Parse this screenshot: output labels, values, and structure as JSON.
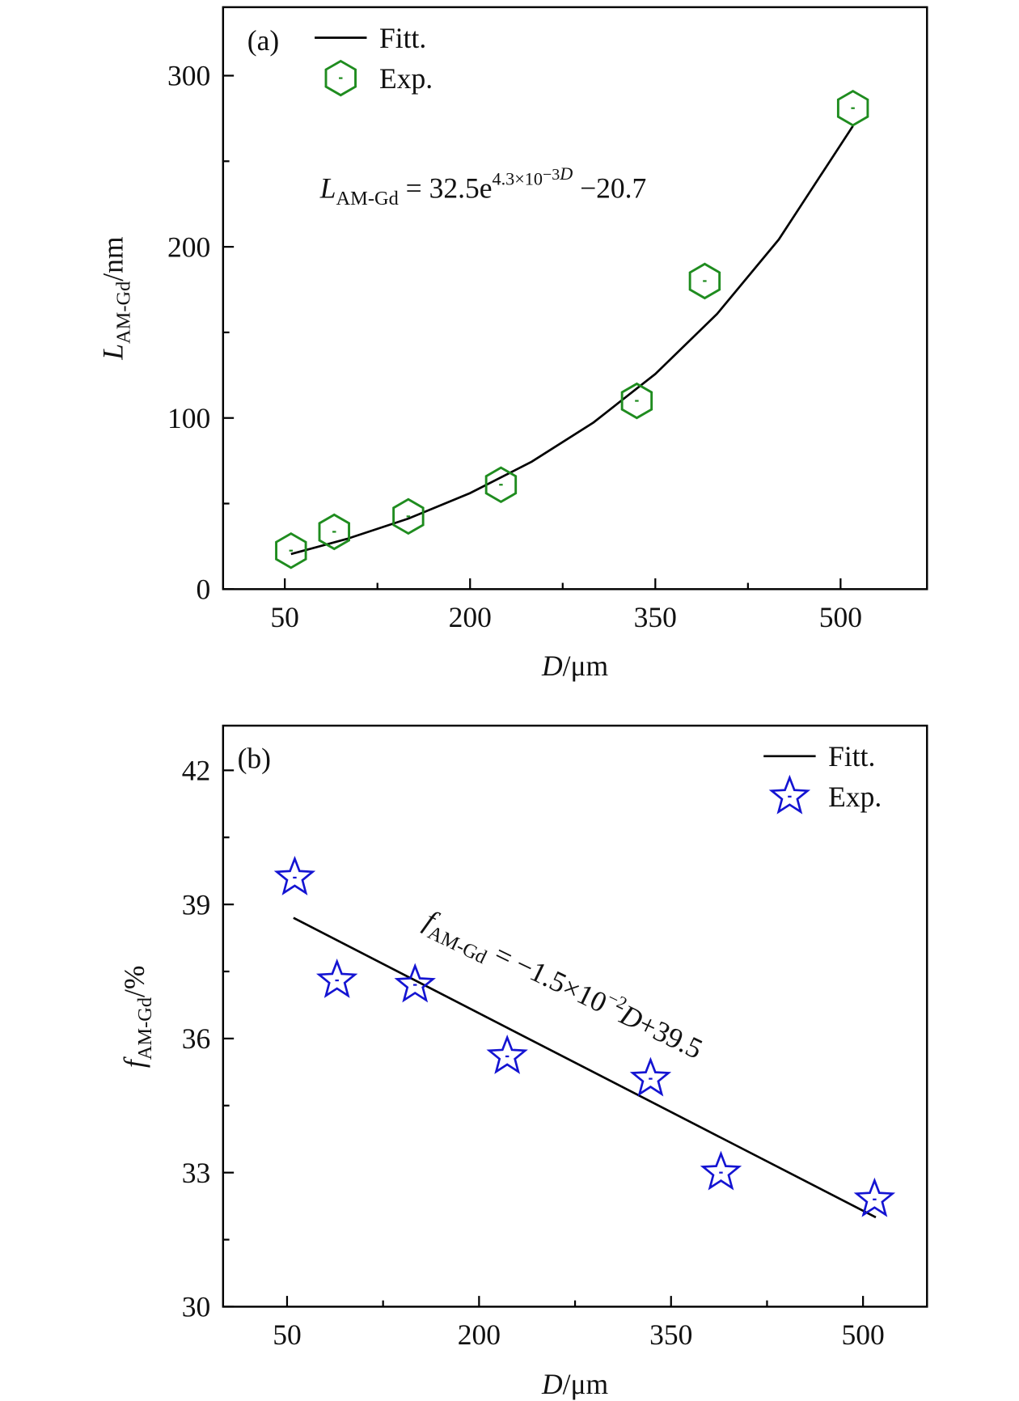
{
  "chart_data": [
    {
      "type": "scatter",
      "panel_label": "(a)",
      "x_label": [
        "D",
        "/μm"
      ],
      "y_label": [
        "L",
        "AM-Gd",
        "/nm"
      ],
      "annotation": [
        "L",
        "AM-Gd",
        " = 32.5e",
        "4.3×10",
        "−3",
        "D",
        " −20.7"
      ],
      "xlim": [
        0,
        570
      ],
      "xticks": [
        50,
        200,
        350,
        500
      ],
      "xminor": [
        125,
        275,
        425
      ],
      "ylim": [
        0,
        340
      ],
      "yticks": [
        0,
        100,
        200,
        300
      ],
      "yminor": [
        50,
        150,
        250
      ],
      "legend": "upper left",
      "series": [
        {
          "name": "Fitt.",
          "color": "#000000",
          "marker": "line",
          "x": [
            55,
            100,
            150,
            200,
            250,
            300,
            350,
            400,
            450,
            510
          ],
          "values": [
            20.5,
            29.3,
            41.2,
            56.1,
            74.5,
            97.4,
            125.7,
            160.8,
            204.3,
            270.6
          ]
        },
        {
          "name": "Exp.",
          "color": "#1f8c1f",
          "marker": "hexagon",
          "x": [
            55,
            90,
            150,
            225,
            335,
            390,
            510
          ],
          "values": [
            22.5,
            33.5,
            42.5,
            61,
            110,
            180,
            281
          ]
        }
      ]
    },
    {
      "type": "scatter",
      "panel_label": "(b)",
      "x_label": [
        "D",
        "/μm"
      ],
      "y_label": [
        "f",
        "AM-Gd",
        "/%"
      ],
      "annotation": [
        "f",
        "AM-Gd",
        " = −1.5×10",
        "−2",
        "D",
        "+39.5"
      ],
      "xlim": [
        0,
        550
      ],
      "xticks": [
        50,
        200,
        350,
        500
      ],
      "xminor": [
        125,
        275,
        425
      ],
      "ylim": [
        30,
        43
      ],
      "yticks": [
        30,
        33,
        36,
        39,
        42
      ],
      "yminor": [
        31.5,
        34.5,
        37.5,
        40.5
      ],
      "legend": "upper right",
      "series": [
        {
          "name": "Fitt.",
          "color": "#000000",
          "marker": "line",
          "x": [
            55,
            510
          ],
          "values": [
            38.7,
            32.0
          ]
        },
        {
          "name": "Exp.",
          "color": "#1414d2",
          "marker": "star",
          "x": [
            56,
            89,
            150,
            222,
            334,
            389,
            509
          ],
          "values": [
            39.6,
            37.3,
            37.2,
            35.6,
            35.1,
            33.0,
            32.4
          ]
        }
      ]
    }
  ]
}
